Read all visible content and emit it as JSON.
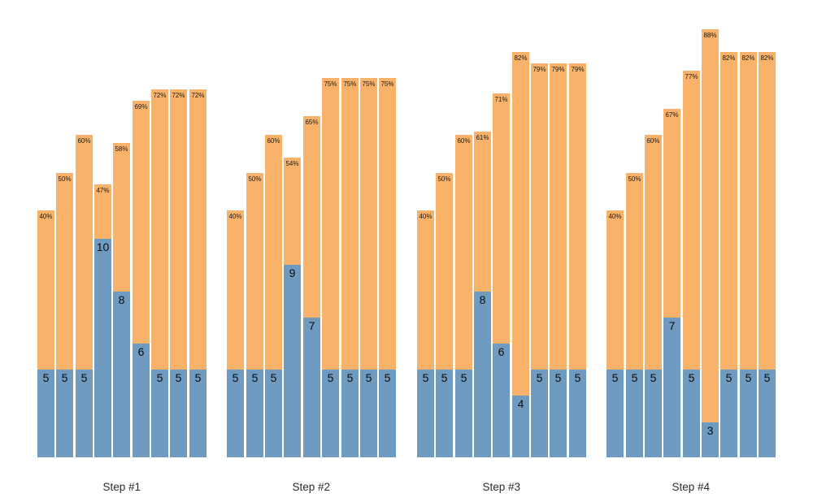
{
  "colors": {
    "blue": "#6f9bc1",
    "orange": "#f8b269",
    "value_label": "#0d0d0d",
    "pct_label": "#1a1a1a",
    "step_label": "#2b2b2b",
    "background": "#ffffff"
  },
  "chart_data": {
    "type": "bar",
    "stacked": true,
    "orientation": "vertical",
    "title": "",
    "xlabel": "",
    "ylabel": "",
    "legend": "none",
    "axes": {
      "x_visible": false,
      "y_visible": false,
      "grid": false,
      "note": "bars share a common bottom edge; baseline value axis is hidden/clipped"
    },
    "series_semantics": {
      "blue_segment": "count value, labeled inside the base of each bar",
      "orange_segment": "percentage, labeled just below the top of each bar"
    },
    "groups": [
      {
        "label": "Step #1",
        "bars": [
          {
            "value": 5,
            "value_label": "5",
            "pct": 40,
            "pct_label": "40%"
          },
          {
            "value": 5,
            "value_label": "5",
            "pct": 50,
            "pct_label": "50%"
          },
          {
            "value": 5,
            "value_label": "5",
            "pct": 60,
            "pct_label": "60%"
          },
          {
            "value": 10,
            "value_label": "10",
            "pct": 47,
            "pct_label": "47%"
          },
          {
            "value": 8,
            "value_label": "8",
            "pct": 58,
            "pct_label": "58%"
          },
          {
            "value": 6,
            "value_label": "6",
            "pct": 69,
            "pct_label": "69%"
          },
          {
            "value": 5,
            "value_label": "5",
            "pct": 72,
            "pct_label": "72%"
          },
          {
            "value": 5,
            "value_label": "5",
            "pct": 72,
            "pct_label": "72%"
          },
          {
            "value": 5,
            "value_label": "5",
            "pct": 72,
            "pct_label": "72%"
          }
        ]
      },
      {
        "label": "Step #2",
        "bars": [
          {
            "value": 5,
            "value_label": "5",
            "pct": 40,
            "pct_label": "40%"
          },
          {
            "value": 5,
            "value_label": "5",
            "pct": 50,
            "pct_label": "50%"
          },
          {
            "value": 5,
            "value_label": "5",
            "pct": 60,
            "pct_label": "60%"
          },
          {
            "value": 9,
            "value_label": "9",
            "pct": 54,
            "pct_label": "54%"
          },
          {
            "value": 7,
            "value_label": "7",
            "pct": 65,
            "pct_label": "65%"
          },
          {
            "value": 5,
            "value_label": "5",
            "pct": 75,
            "pct_label": "75%"
          },
          {
            "value": 5,
            "value_label": "5",
            "pct": 75,
            "pct_label": "75%"
          },
          {
            "value": 5,
            "value_label": "5",
            "pct": 75,
            "pct_label": "75%"
          },
          {
            "value": 5,
            "value_label": "5",
            "pct": 75,
            "pct_label": "75%"
          }
        ]
      },
      {
        "label": "Step #3",
        "bars": [
          {
            "value": 5,
            "value_label": "5",
            "pct": 40,
            "pct_label": "40%"
          },
          {
            "value": 5,
            "value_label": "5",
            "pct": 50,
            "pct_label": "50%"
          },
          {
            "value": 5,
            "value_label": "5",
            "pct": 60,
            "pct_label": "60%"
          },
          {
            "value": 8,
            "value_label": "8",
            "pct": 61,
            "pct_label": "61%"
          },
          {
            "value": 6,
            "value_label": "6",
            "pct": 71,
            "pct_label": "71%"
          },
          {
            "value": 4,
            "value_label": "4",
            "pct": 82,
            "pct_label": "82%"
          },
          {
            "value": 5,
            "value_label": "5",
            "pct": 79,
            "pct_label": "79%"
          },
          {
            "value": 5,
            "value_label": "5",
            "pct": 79,
            "pct_label": "79%"
          },
          {
            "value": 5,
            "value_label": "5",
            "pct": 79,
            "pct_label": "79%"
          }
        ]
      },
      {
        "label": "Step #4",
        "bars": [
          {
            "value": 5,
            "value_label": "5",
            "pct": 40,
            "pct_label": "40%"
          },
          {
            "value": 5,
            "value_label": "5",
            "pct": 50,
            "pct_label": "50%"
          },
          {
            "value": 5,
            "value_label": "5",
            "pct": 60,
            "pct_label": "60%"
          },
          {
            "value": 7,
            "value_label": "7",
            "pct": 67,
            "pct_label": "67%"
          },
          {
            "value": 5,
            "value_label": "5",
            "pct": 77,
            "pct_label": "77%"
          },
          {
            "value": 3,
            "value_label": "3",
            "pct": 88,
            "pct_label": "88%"
          },
          {
            "value": 5,
            "value_label": "5",
            "pct": 82,
            "pct_label": "82%"
          },
          {
            "value": 5,
            "value_label": "5",
            "pct": 82,
            "pct_label": "82%"
          },
          {
            "value": 5,
            "value_label": "5",
            "pct": 82,
            "pct_label": "82%"
          }
        ]
      }
    ]
  }
}
